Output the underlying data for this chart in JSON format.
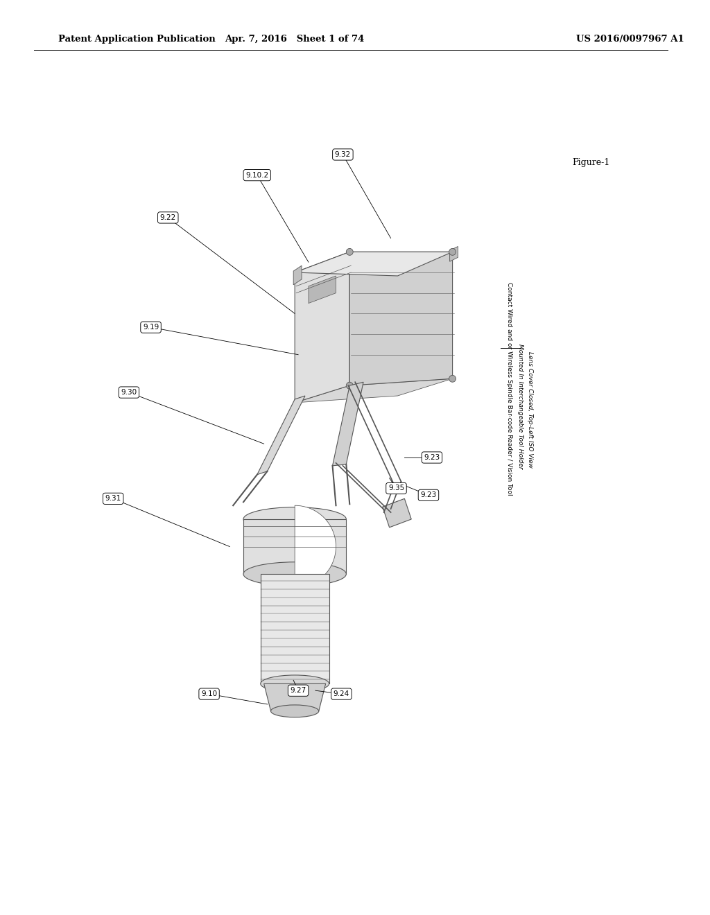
{
  "header_left": "Patent Application Publication",
  "header_mid": "Apr. 7, 2016   Sheet 1 of 74",
  "header_right": "US 2016/0097967 A1",
  "figure_label": "Figure-1",
  "caption_line1": "Contact Wired and or Wireless Spindle Bar-code Reader / Vision Tool",
  "caption_line2": "Mounted In Interchangeable Tool Holder",
  "caption_line3": "Lens Cover Closed, Top-Left ISO View",
  "bg_color": "#ffffff",
  "text_color": "#000000",
  "lc": "#555555",
  "lw": 0.8
}
